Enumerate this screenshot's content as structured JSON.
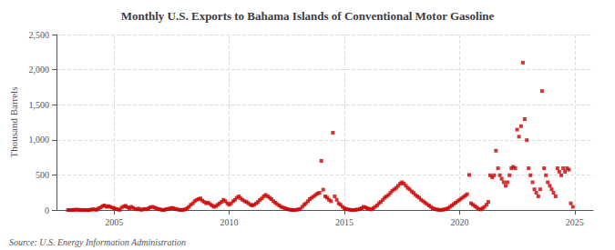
{
  "chart_data": {
    "type": "scatter",
    "title": "Monthly U.S. Exports to Bahama Islands of Conventional Motor Gasoline",
    "ylabel": "Thousand Barrels",
    "annotations": [
      "Source: U.S. Energy Information Administration"
    ],
    "color": "#cc0000",
    "marker": "square",
    "grid": true,
    "xlim": [
      2002.5,
      2025.8
    ],
    "xticks": [
      2005,
      2010,
      2015,
      2020,
      2025
    ],
    "ylim": [
      0,
      2500
    ],
    "yticks": [
      0,
      500,
      {
        "value": 1000,
        "label": "1,000"
      },
      {
        "value": 1500,
        "label": "1,500"
      },
      {
        "value": 2000,
        "label": "2,000"
      },
      {
        "value": 2500,
        "label": "2,500"
      }
    ],
    "x": [
      2003.0,
      2003.08,
      2003.17,
      2003.25,
      2003.33,
      2003.42,
      2003.5,
      2003.58,
      2003.67,
      2003.75,
      2003.83,
      2003.92,
      2004.0,
      2004.08,
      2004.17,
      2004.25,
      2004.33,
      2004.42,
      2004.5,
      2004.58,
      2004.67,
      2004.75,
      2004.83,
      2004.92,
      2005.0,
      2005.08,
      2005.17,
      2005.25,
      2005.33,
      2005.42,
      2005.5,
      2005.58,
      2005.67,
      2005.75,
      2005.83,
      2005.92,
      2006.0,
      2006.08,
      2006.17,
      2006.25,
      2006.33,
      2006.42,
      2006.5,
      2006.58,
      2006.67,
      2006.75,
      2006.83,
      2006.92,
      2007.0,
      2007.08,
      2007.17,
      2007.25,
      2007.33,
      2007.42,
      2007.5,
      2007.58,
      2007.67,
      2007.75,
      2007.83,
      2007.92,
      2008.0,
      2008.08,
      2008.17,
      2008.25,
      2008.33,
      2008.42,
      2008.5,
      2008.58,
      2008.67,
      2008.75,
      2008.83,
      2008.92,
      2009.0,
      2009.08,
      2009.17,
      2009.25,
      2009.33,
      2009.42,
      2009.5,
      2009.58,
      2009.67,
      2009.75,
      2009.83,
      2009.92,
      2010.0,
      2010.08,
      2010.17,
      2010.25,
      2010.33,
      2010.42,
      2010.5,
      2010.58,
      2010.67,
      2010.75,
      2010.83,
      2010.92,
      2011.0,
      2011.08,
      2011.17,
      2011.25,
      2011.33,
      2011.42,
      2011.5,
      2011.58,
      2011.67,
      2011.75,
      2011.83,
      2011.92,
      2012.0,
      2012.08,
      2012.17,
      2012.25,
      2012.33,
      2012.42,
      2012.5,
      2012.58,
      2012.67,
      2012.75,
      2012.83,
      2012.92,
      2013.0,
      2013.08,
      2013.17,
      2013.25,
      2013.33,
      2013.42,
      2013.5,
      2013.58,
      2013.67,
      2013.75,
      2013.83,
      2013.92,
      2014.0,
      2014.08,
      2014.17,
      2014.25,
      2014.33,
      2014.42,
      2014.5,
      2014.58,
      2014.67,
      2014.75,
      2014.83,
      2014.92,
      2015.0,
      2015.08,
      2015.17,
      2015.25,
      2015.33,
      2015.42,
      2015.5,
      2015.58,
      2015.67,
      2015.75,
      2015.83,
      2015.92,
      2016.0,
      2016.08,
      2016.17,
      2016.25,
      2016.33,
      2016.42,
      2016.5,
      2016.58,
      2016.67,
      2016.75,
      2016.83,
      2016.92,
      2017.0,
      2017.08,
      2017.17,
      2017.25,
      2017.33,
      2017.42,
      2017.5,
      2017.58,
      2017.67,
      2017.75,
      2017.83,
      2017.92,
      2018.0,
      2018.08,
      2018.17,
      2018.25,
      2018.33,
      2018.42,
      2018.5,
      2018.58,
      2018.67,
      2018.75,
      2018.83,
      2018.92,
      2019.0,
      2019.08,
      2019.17,
      2019.25,
      2019.33,
      2019.42,
      2019.5,
      2019.58,
      2019.67,
      2019.75,
      2019.83,
      2019.92,
      2020.0,
      2020.08,
      2020.17,
      2020.25,
      2020.33,
      2020.42,
      2020.5,
      2020.58,
      2020.67,
      2020.75,
      2020.83,
      2020.92,
      2021.0,
      2021.08,
      2021.17,
      2021.25,
      2021.33,
      2021.42,
      2021.5,
      2021.58,
      2021.67,
      2021.75,
      2021.83,
      2021.92,
      2022.0,
      2022.08,
      2022.17,
      2022.25,
      2022.33,
      2022.42,
      2022.5,
      2022.58,
      2022.67,
      2022.75,
      2022.83,
      2022.92,
      2023.0,
      2023.08,
      2023.17,
      2023.25,
      2023.33,
      2023.42,
      2023.5,
      2023.58,
      2023.67,
      2023.75,
      2023.83,
      2023.92,
      2024.0,
      2024.08,
      2024.17,
      2024.25,
      2024.33,
      2024.42,
      2024.5,
      2024.58,
      2024.67,
      2024.75,
      2024.83,
      2024.92
    ],
    "values": [
      0,
      0,
      0,
      2,
      5,
      3,
      2,
      0,
      0,
      0,
      0,
      0,
      5,
      10,
      8,
      3,
      25,
      35,
      55,
      65,
      45,
      55,
      45,
      35,
      25,
      15,
      8,
      3,
      35,
      50,
      60,
      40,
      25,
      45,
      30,
      15,
      10,
      20,
      3,
      8,
      15,
      10,
      25,
      40,
      45,
      35,
      25,
      15,
      8,
      3,
      0,
      10,
      15,
      20,
      30,
      25,
      15,
      8,
      3,
      0,
      3,
      8,
      25,
      45,
      75,
      95,
      125,
      145,
      155,
      165,
      135,
      115,
      95,
      105,
      85,
      65,
      45,
      55,
      75,
      95,
      115,
      145,
      125,
      95,
      75,
      95,
      125,
      145,
      175,
      195,
      165,
      145,
      125,
      115,
      95,
      75,
      65,
      75,
      95,
      115,
      145,
      165,
      195,
      215,
      195,
      175,
      155,
      125,
      105,
      85,
      65,
      45,
      35,
      25,
      15,
      8,
      3,
      0,
      0,
      3,
      8,
      15,
      45,
      75,
      95,
      125,
      155,
      175,
      195,
      215,
      235,
      245,
      700,
      290,
      195,
      175,
      145,
      125,
      1100,
      195,
      145,
      95,
      75,
      45,
      25,
      15,
      8,
      3,
      0,
      0,
      3,
      8,
      15,
      25,
      45,
      35,
      25,
      15,
      8,
      25,
      45,
      65,
      95,
      115,
      145,
      175,
      195,
      215,
      245,
      275,
      295,
      315,
      345,
      375,
      395,
      375,
      345,
      315,
      295,
      265,
      245,
      215,
      195,
      175,
      145,
      125,
      105,
      85,
      65,
      45,
      25,
      15,
      8,
      3,
      0,
      3,
      8,
      15,
      25,
      45,
      65,
      85,
      105,
      125,
      145,
      165,
      185,
      205,
      225,
      500,
      95,
      75,
      55,
      35,
      15,
      8,
      25,
      45,
      75,
      115,
      495,
      465,
      495,
      845,
      595,
      495,
      445,
      395,
      345,
      395,
      495,
      595,
      615,
      595,
      1145,
      1045,
      1195,
      2100,
      1295,
      995,
      595,
      495,
      395,
      295,
      245,
      195,
      295,
      1695,
      595,
      495,
      395,
      345,
      295,
      245,
      195,
      595,
      545,
      495,
      595,
      545,
      595,
      575,
      95,
      45
    ]
  }
}
